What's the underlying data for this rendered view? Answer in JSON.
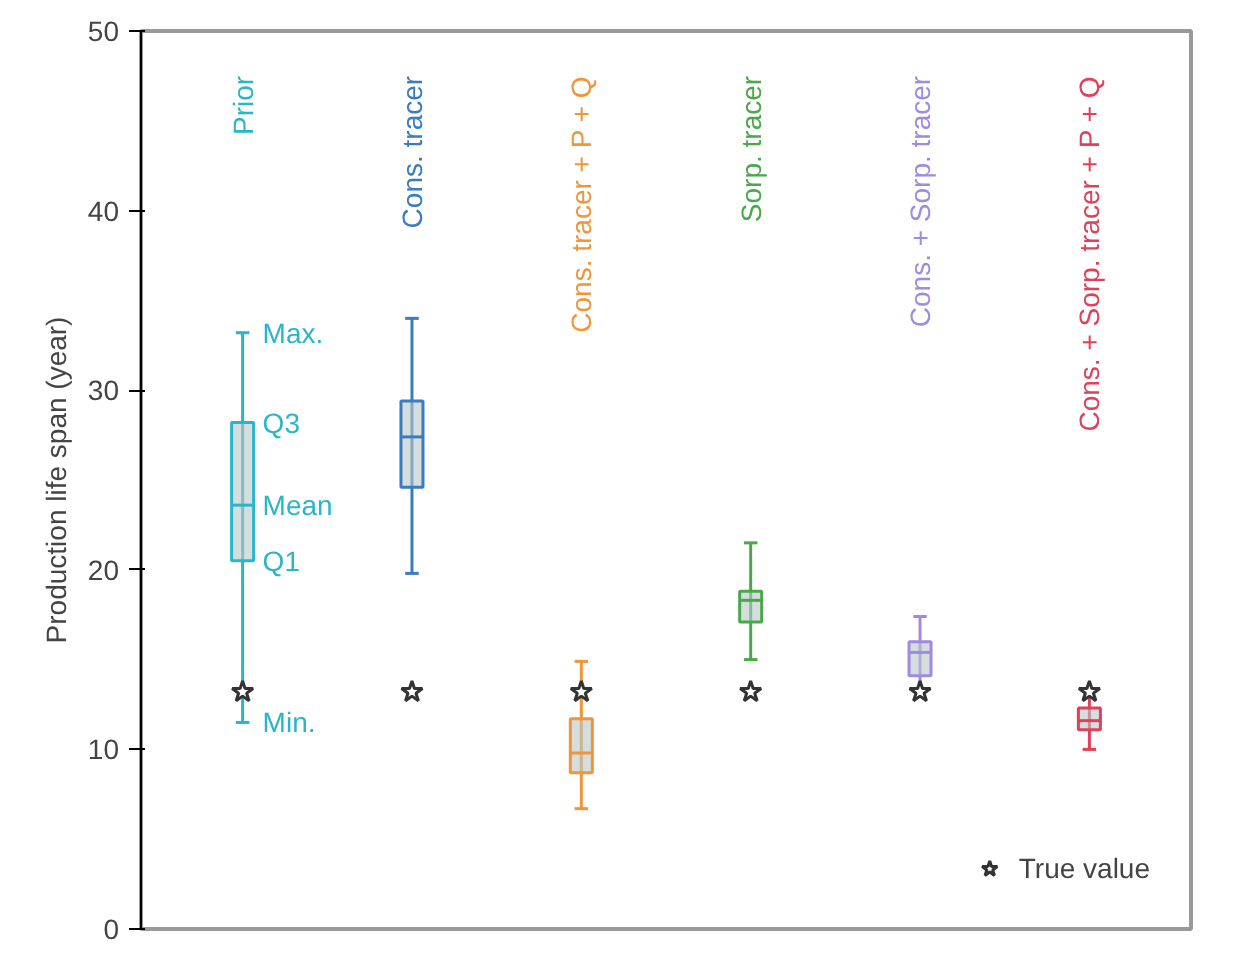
{
  "chart_data": {
    "type": "box",
    "ylabel": "Production life span (year)",
    "categories": [
      "Prior",
      "Cons. tracer",
      "Cons. tracer + P + Q",
      "Sorp. tracer",
      "Cons. + Sorp. tracer",
      "Cons. + Sorp. tracer + P + Q"
    ],
    "colors": [
      "#2bb5c8",
      "#3b7bbf",
      "#f0953a",
      "#4aa84a",
      "#a08be0",
      "#e0405a"
    ],
    "boxes": [
      {
        "low": 11.5,
        "q1": 20.5,
        "median": 23.6,
        "q3": 28.2,
        "high": 33.2
      },
      {
        "low": 19.8,
        "q1": 24.6,
        "median": 27.4,
        "q3": 29.4,
        "high": 34.0
      },
      {
        "low": 6.7,
        "q1": 8.7,
        "median": 9.8,
        "q3": 11.7,
        "high": 14.9
      },
      {
        "low": 15.0,
        "q1": 17.1,
        "median": 18.3,
        "q3": 18.8,
        "high": 21.5
      },
      {
        "low": 13.3,
        "q1": 14.1,
        "median": 15.4,
        "q3": 16.0,
        "high": 17.4
      },
      {
        "low": 10.0,
        "q1": 11.1,
        "median": 11.6,
        "q3": 12.3,
        "high": 12.9
      }
    ],
    "series": [
      {
        "type": "scatter",
        "name": "True value",
        "color": "#333333",
        "marker": "star",
        "x": [
          "Prior",
          "Cons. tracer",
          "Cons. tracer + P + Q",
          "Sorp. tracer",
          "Cons. + Sorp. tracer",
          "Cons. + Sorp. tracer + P + Q"
        ],
        "values": [
          13.2,
          13.2,
          13.2,
          13.2,
          13.2,
          13.2
        ]
      }
    ],
    "annotations": [
      {
        "text": "Max.",
        "x": "Prior",
        "y": 33.2
      },
      {
        "text": "Q3",
        "x": "Prior",
        "y": 28.2
      },
      {
        "text": "Mean",
        "x": "Prior",
        "y": 23.6
      },
      {
        "text": "Q1",
        "x": "Prior",
        "y": 20.5
      },
      {
        "text": "Min.",
        "x": "Prior",
        "y": 11.5
      }
    ],
    "ylim": [
      0,
      50
    ],
    "yticks": [
      0,
      10,
      20,
      30,
      40,
      50
    ],
    "grid": false,
    "legend": "bottom right",
    "tick_labels": "y"
  }
}
